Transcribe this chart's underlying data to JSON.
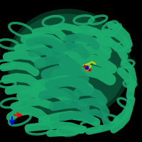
{
  "background_color": "#000000",
  "protein_color": "#1aab6d",
  "protein_color_dark": "#0d7a4e",
  "protein_color_mid": "#17996a",
  "ligand_colors": {
    "yellow": "#cccc00",
    "blue": "#0000cc",
    "red": "#cc0000",
    "orange": "#cc6600"
  },
  "axis_x_color": "#ff0000",
  "axis_y_color": "#0000ff",
  "figsize": [
    2.0,
    2.0
  ],
  "dpi": 100
}
